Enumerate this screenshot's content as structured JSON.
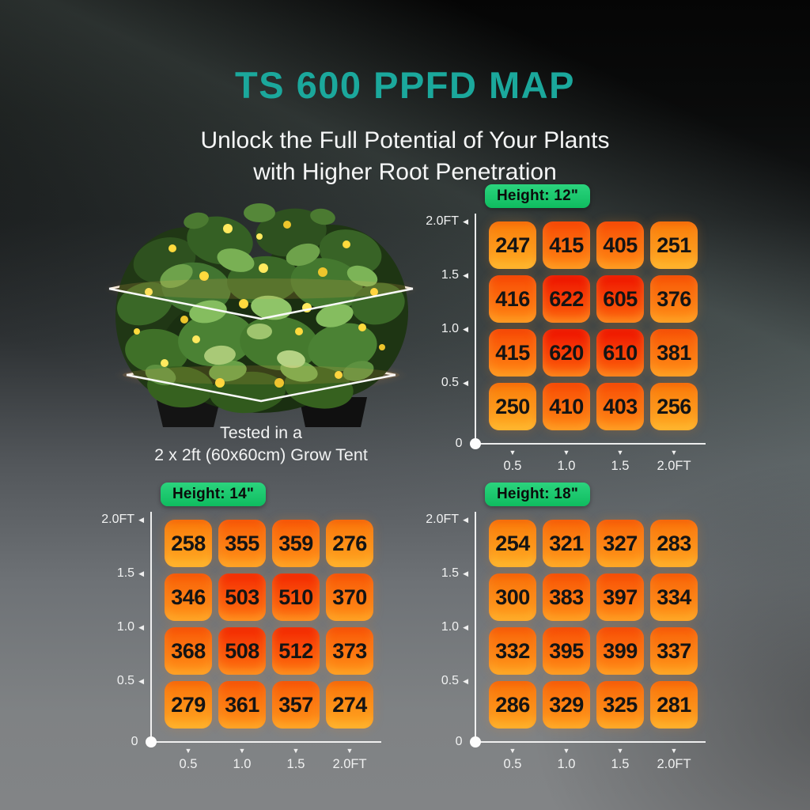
{
  "page": {
    "title": "TS 600 PPFD MAP",
    "subtitle1": "Unlock the Full Potential of Your Plants",
    "subtitle2": "with Higher Root Penetration",
    "caption1": "Tested in a",
    "caption2": "2 x 2ft (60x60cm) Grow Tent"
  },
  "colors": {
    "title_teal": "#1BA89C",
    "badge_green_top": "#2BD47E",
    "badge_green_bottom": "#0FBC5F",
    "cell_value_text": "#141414",
    "axis_white": "#F0F1F1",
    "cell_low_top": "#FA7E0A",
    "cell_low_bottom": "#FFB026",
    "cell_high_top": "#EE1001",
    "cell_high_bottom": "#FD640A"
  },
  "chart_data": [
    {
      "type": "heatmap",
      "title": "Height: 12\"",
      "y_ticks": [
        "2.0FT",
        "1.5",
        "1.0",
        "0.5"
      ],
      "origin_label": "0",
      "x_ticks": [
        "0.5",
        "1.0",
        "1.5",
        "2.0FT"
      ],
      "x_range_ft": [
        0,
        2
      ],
      "y_range_ft": [
        0,
        2
      ],
      "values": [
        [
          247,
          415,
          405,
          251
        ],
        [
          416,
          622,
          605,
          376
        ],
        [
          415,
          620,
          610,
          381
        ],
        [
          250,
          410,
          403,
          256
        ]
      ]
    },
    {
      "type": "heatmap",
      "title": "Height: 14\"",
      "y_ticks": [
        "2.0FT",
        "1.5",
        "1.0",
        "0.5"
      ],
      "origin_label": "0",
      "x_ticks": [
        "0.5",
        "1.0",
        "1.5",
        "2.0FT"
      ],
      "x_range_ft": [
        0,
        2
      ],
      "y_range_ft": [
        0,
        2
      ],
      "values": [
        [
          258,
          355,
          359,
          276
        ],
        [
          346,
          503,
          510,
          370
        ],
        [
          368,
          508,
          512,
          373
        ],
        [
          279,
          361,
          357,
          274
        ]
      ]
    },
    {
      "type": "heatmap",
      "title": "Height: 18\"",
      "y_ticks": [
        "2.0FT",
        "1.5",
        "1.0",
        "0.5"
      ],
      "origin_label": "0",
      "x_ticks": [
        "0.5",
        "1.0",
        "1.5",
        "2.0FT"
      ],
      "x_range_ft": [
        0,
        2
      ],
      "y_range_ft": [
        0,
        2
      ],
      "values": [
        [
          254,
          321,
          327,
          283
        ],
        [
          300,
          383,
          397,
          334
        ],
        [
          332,
          395,
          399,
          337
        ],
        [
          286,
          329,
          325,
          281
        ]
      ]
    }
  ]
}
